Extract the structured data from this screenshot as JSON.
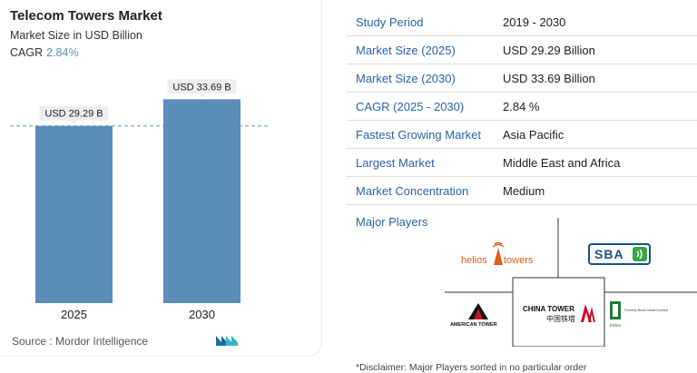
{
  "header": {
    "title": "Telecom Towers Market",
    "subtitle": "Market Size in USD Billion",
    "cagr_label": "CAGR",
    "cagr_value": "2.84%"
  },
  "chart_data": {
    "type": "bar",
    "categories": [
      "2025",
      "2030"
    ],
    "values": [
      29.29,
      33.69
    ],
    "data_labels": [
      "USD 29.29 B",
      "USD 33.69 B"
    ],
    "bar_color": "#5b8db8",
    "ylim": [
      0,
      36
    ],
    "reference_line": "dashed line at 2025 value"
  },
  "source": "Source :  Mordor Intelligence",
  "table": {
    "rows": [
      {
        "key": "Study Period",
        "value": "2019 - 2030"
      },
      {
        "key": "Market Size (2025)",
        "value": "USD 29.29 Billion"
      },
      {
        "key": "Market Size (2030)",
        "value": "USD 33.69 Billion"
      },
      {
        "key": "CAGR (2025 - 2030)",
        "value": "2.84 %"
      },
      {
        "key": "Fastest Growing Market",
        "value": "Asia Pacific"
      },
      {
        "key": "Largest Market",
        "value": "Middle East and Africa"
      },
      {
        "key": "Market Concentration",
        "value": "Medium"
      }
    ]
  },
  "players": {
    "label": "Major Players",
    "logos": {
      "helios": {
        "part1": "helios",
        "part2": "towers"
      },
      "sba": "SBA",
      "american_tower": "AMERICAN TOWER",
      "china_tower": {
        "en": "CHINA TOWER",
        "zh": "中国铁塔"
      },
      "indus": "indus"
    }
  },
  "disclaimer": "*Disclaimer: Major Players sorted in no particular order"
}
